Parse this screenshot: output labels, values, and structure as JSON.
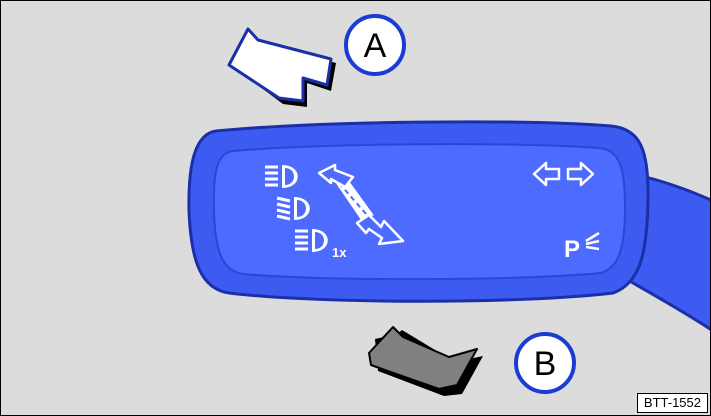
{
  "callouts": {
    "a": "A",
    "b": "B"
  },
  "lever": {
    "subscript": "1x",
    "parking_label": "P"
  },
  "reference_code": "BTT-1552",
  "colors": {
    "background": "#dcdcdc",
    "lever_fill": "#3d5bf0",
    "lever_panel": "#4e6bff",
    "lever_outline": "#1a2fa8",
    "symbol": "#ffffff",
    "arrow_a_fill": "#ffffff",
    "arrow_b_fill": "#808080",
    "callout_ring": "#1a3bd4"
  },
  "icons": [
    "high-beam-icon",
    "dipped-beam-icon",
    "headlight-flash-icon",
    "up-arrow-icon",
    "down-arrow-icon",
    "turn-signal-icon",
    "parking-light-icon"
  ]
}
